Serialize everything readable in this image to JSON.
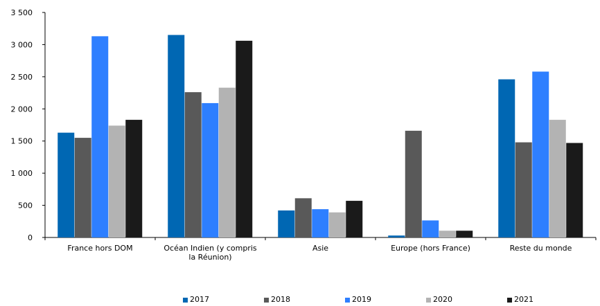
{
  "chart_data": {
    "type": "bar",
    "categories": [
      [
        "France hors DOM"
      ],
      [
        "Océan Indien (y compris",
        "la Réunion)"
      ],
      [
        "Asie"
      ],
      [
        "Europe (hors France)"
      ],
      [
        "Reste du monde"
      ]
    ],
    "series": [
      {
        "name": "2017",
        "color": "#0067b3",
        "values": [
          1630,
          3150,
          420,
          30,
          2460
        ]
      },
      {
        "name": "2018",
        "color": "#595959",
        "values": [
          1550,
          2260,
          610,
          1660,
          1480
        ]
      },
      {
        "name": "2019",
        "color": "#2e7fff",
        "values": [
          3130,
          2090,
          440,
          265,
          2580
        ]
      },
      {
        "name": "2020",
        "color": "#b3b3b3",
        "values": [
          1740,
          2330,
          390,
          105,
          1830
        ]
      },
      {
        "name": "2021",
        "color": "#1a1a1a",
        "values": [
          1830,
          3060,
          570,
          105,
          1470
        ]
      }
    ],
    "yticks": [
      "0",
      "500",
      "1 000",
      "1 500",
      "2 000",
      "2 500",
      "3 000",
      "3 500"
    ],
    "ylim": [
      0,
      3500
    ],
    "title": "",
    "xlabel": "",
    "ylabel": "",
    "grid": false,
    "legend_position": "bottom"
  }
}
